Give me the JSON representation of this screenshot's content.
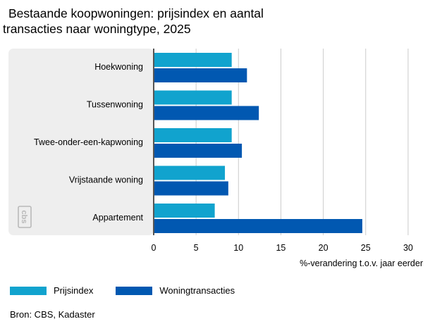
{
  "title_line1": "Bestaande koopwoningen: prijsindex en aantal",
  "title_line2": "transacties naar woningtype, 2025",
  "logo_text": "cbs",
  "source": "Bron: CBS, Kadaster",
  "colors": {
    "prijsindex": "#11a3ce",
    "woningtransacties": "#0158b1",
    "panel": "#eeeeee",
    "grid": "#cccccc"
  },
  "chart_data": {
    "type": "bar",
    "orientation": "horizontal",
    "categories": [
      "Hoekwoning",
      "Tussenwoning",
      "Twee-onder-een-kapwoning",
      "Vrijstaande woning",
      "Appartement"
    ],
    "series": [
      {
        "name": "Prijsindex",
        "values": [
          9.2,
          9.2,
          9.2,
          8.4,
          7.2
        ]
      },
      {
        "name": "Woningtransacties",
        "values": [
          11.0,
          12.4,
          10.4,
          8.8,
          24.6
        ]
      }
    ],
    "xlabel": "%-verandering t.o.v. jaar eerder",
    "xlim": [
      0,
      30
    ],
    "xticks": [
      0,
      5,
      10,
      15,
      20,
      25,
      30
    ],
    "grid": true,
    "legend": "bottom"
  }
}
